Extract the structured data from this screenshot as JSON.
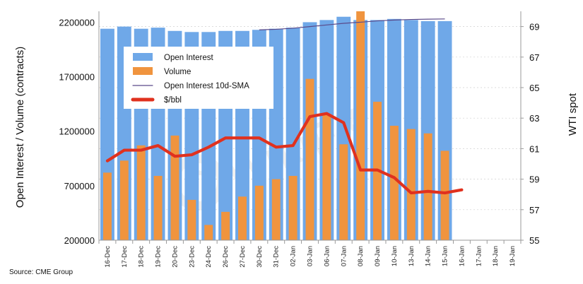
{
  "chart_data": {
    "type": "bar",
    "title": "",
    "categories": [
      "16-Dec",
      "17-Dec",
      "18-Dec",
      "19-Dec",
      "20-Dec",
      "23-Dec",
      "24-Dec",
      "26-Dec",
      "27-Dec",
      "30-Dec",
      "31-Dec",
      "02-Jan",
      "03-Jan",
      "06-Jan",
      "07-Jan",
      "08-Jan",
      "09-Jan",
      "10-Jan",
      "13-Jan",
      "14-Jan",
      "15-Jan",
      "16-Jan",
      "17-Jan",
      "18-Jan",
      "19-Jan"
    ],
    "xlabel": "",
    "ylabel": "Open Interest / Volume (contracts)",
    "y2label": "WTI spot",
    "ylim": [
      200000,
      2300000
    ],
    "y2lim": [
      55,
      70
    ],
    "yticks": [
      "2200000",
      "1700000",
      "1200000",
      "700000",
      "200000"
    ],
    "y2ticks": [
      "69",
      "67",
      "65",
      "63",
      "61",
      "59",
      "57",
      "55"
    ],
    "series": [
      {
        "name": "Open Interest",
        "kind": "bar",
        "color": "#6fa8e8",
        "values": [
          2140000,
          2160000,
          2140000,
          2150000,
          2120000,
          2110000,
          2110000,
          2120000,
          2120000,
          2130000,
          2140000,
          2150000,
          2200000,
          2220000,
          2250000,
          2220000,
          2220000,
          2230000,
          2220000,
          2210000,
          2210000,
          null,
          null,
          null,
          null
        ]
      },
      {
        "name": "Volume",
        "kind": "bar",
        "color": "#f0943e",
        "values": [
          820000,
          930000,
          1070000,
          790000,
          1160000,
          570000,
          340000,
          460000,
          600000,
          700000,
          760000,
          790000,
          1680000,
          1360000,
          1080000,
          2300000,
          1470000,
          1250000,
          1220000,
          1180000,
          1020000,
          null,
          null,
          null,
          null
        ]
      },
      {
        "name": "Open Interest 10d-SMA",
        "kind": "line",
        "axis": "left",
        "color": "#5a4a8a",
        "values": [
          null,
          null,
          null,
          null,
          null,
          null,
          null,
          null,
          null,
          2130000,
          2135000,
          2145000,
          2160000,
          2175000,
          2190000,
          2200000,
          2212000,
          2220000,
          2225000,
          2228000,
          2230000,
          null,
          null,
          null,
          null
        ]
      },
      {
        "name": "$/bbl",
        "kind": "line",
        "axis": "right",
        "color": "#e0311e",
        "values": [
          60.2,
          60.9,
          60.9,
          61.2,
          60.5,
          60.6,
          61.1,
          61.7,
          61.7,
          61.7,
          61.1,
          61.2,
          63.1,
          63.3,
          62.7,
          59.6,
          59.6,
          59.1,
          58.1,
          58.2,
          58.1,
          58.3,
          null,
          null,
          null
        ]
      }
    ],
    "legend": {
      "position": "top-left",
      "entries": [
        "Open Interest",
        "Volume",
        "Open Interest 10d-SMA",
        "$/bbl"
      ]
    },
    "watermark": "WikiFX"
  },
  "source": "Source: CME Group"
}
